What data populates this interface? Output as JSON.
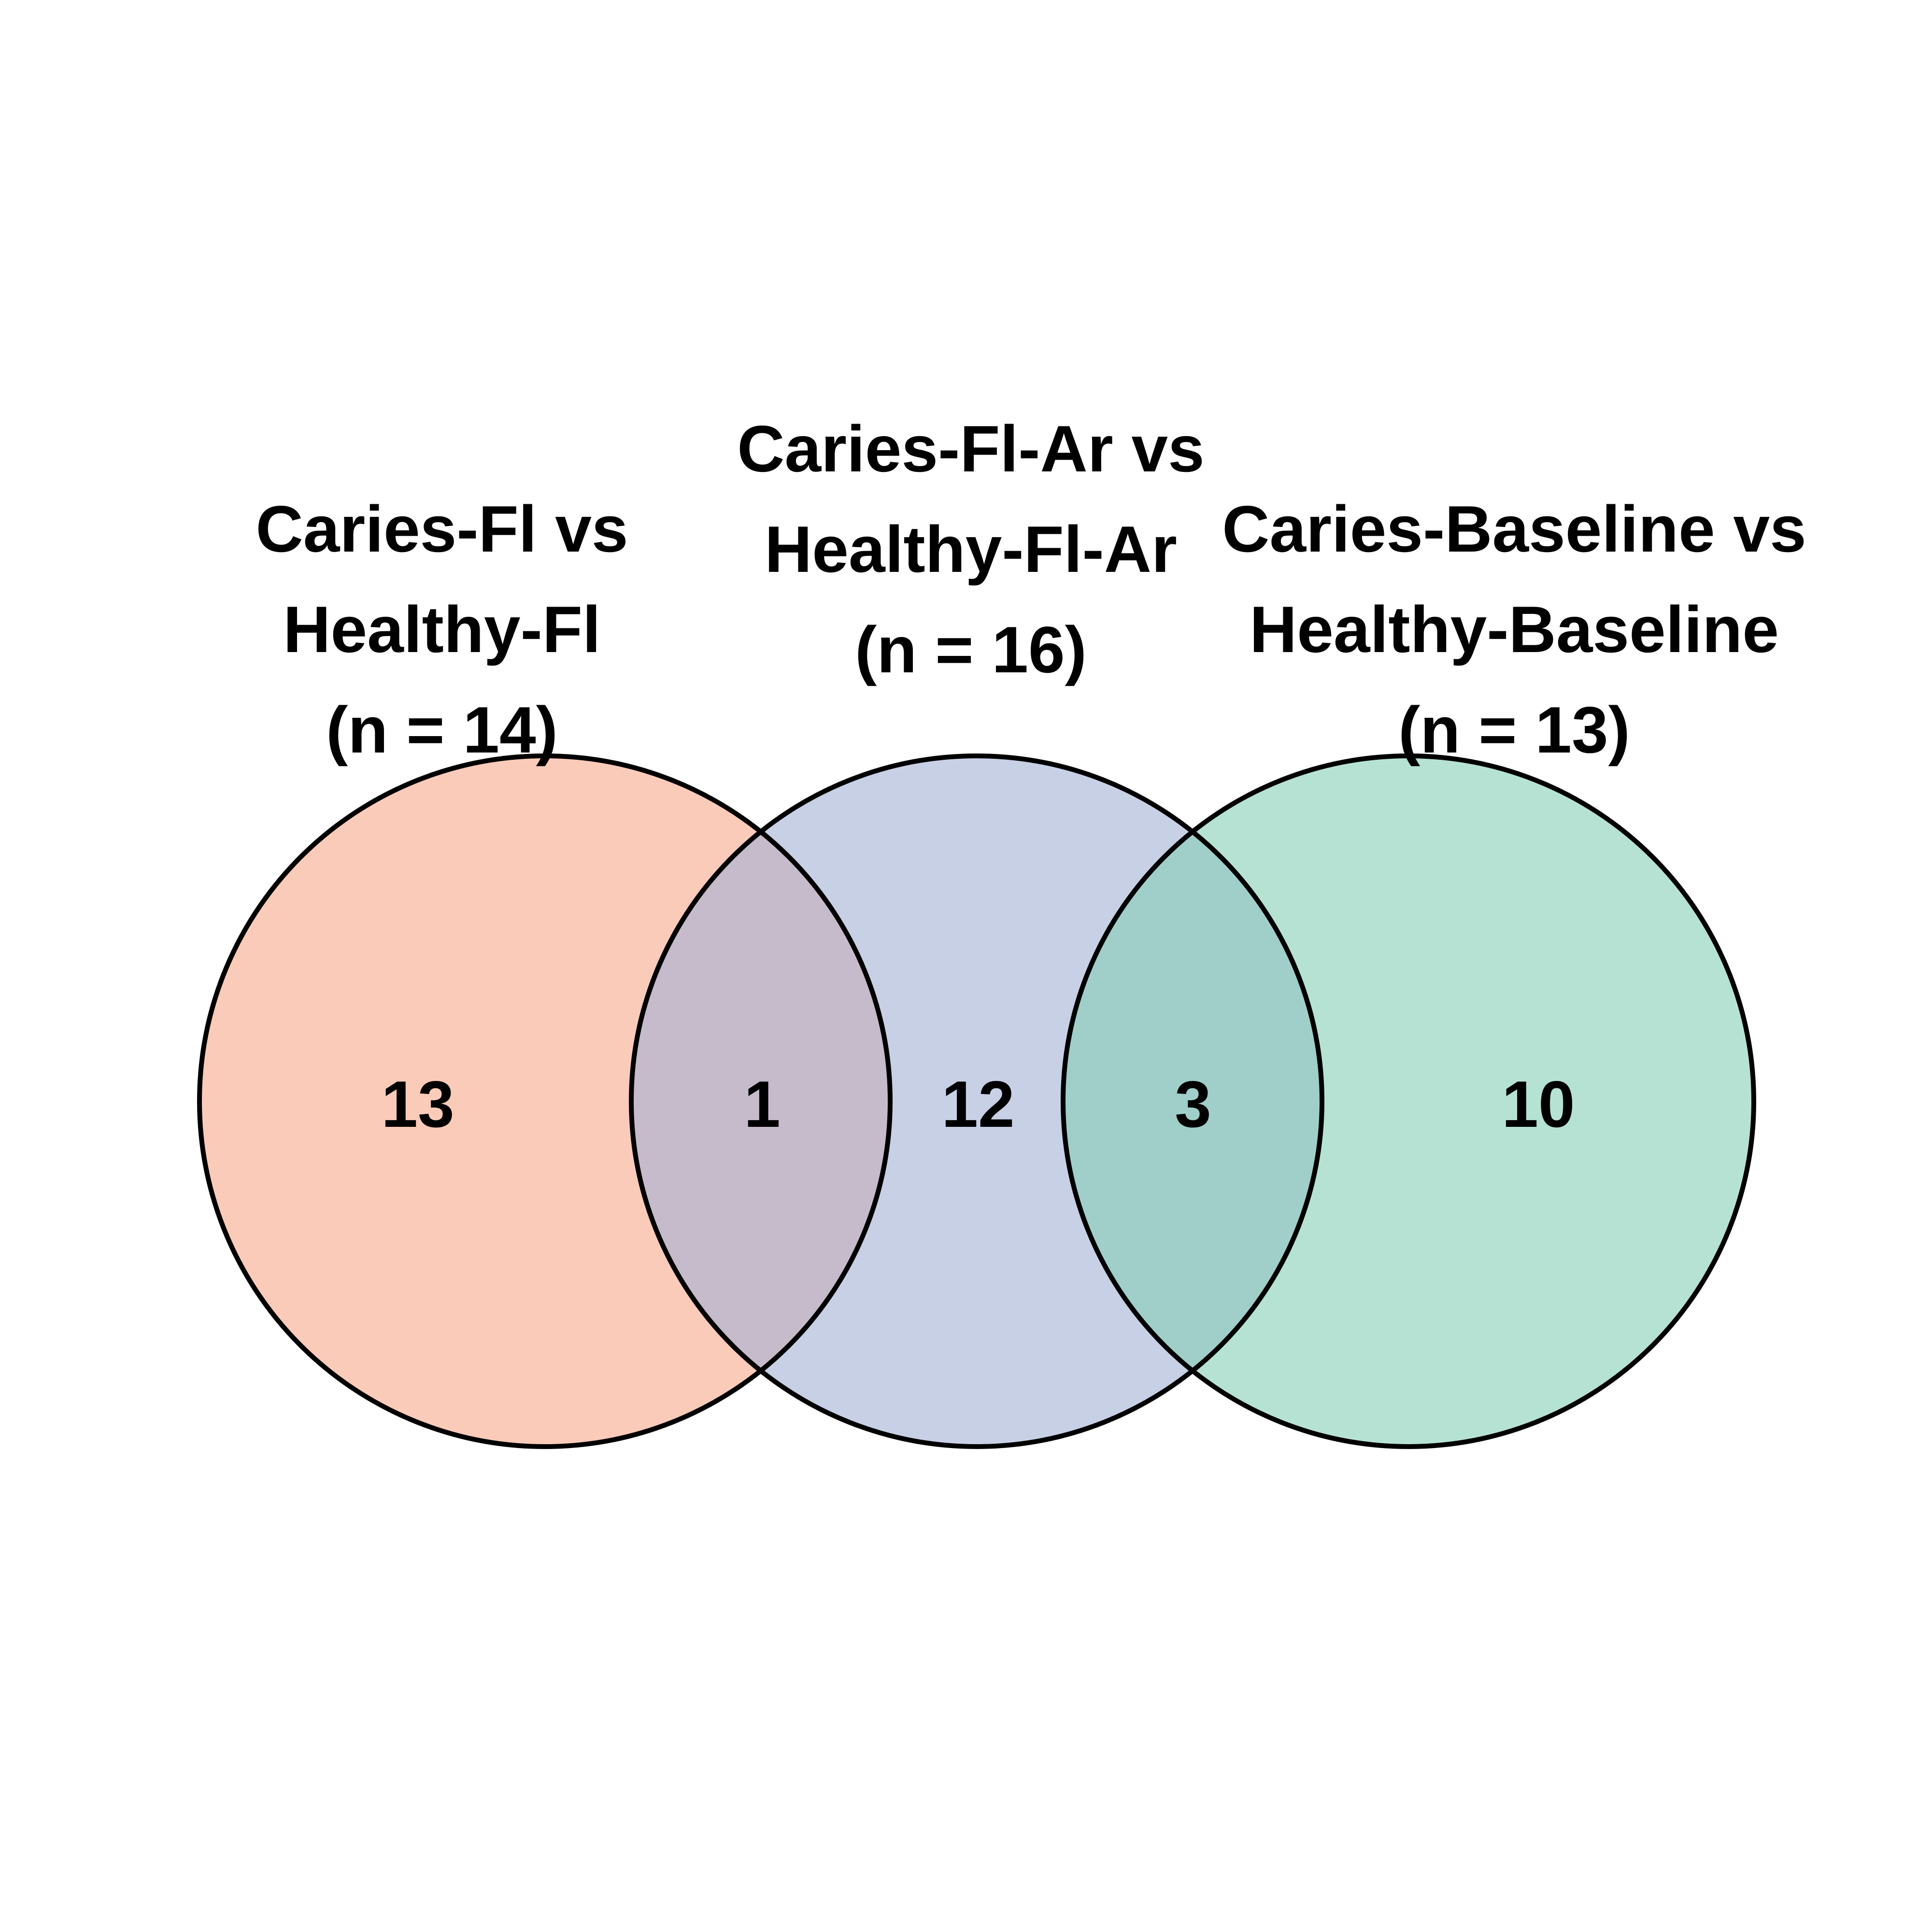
{
  "venn": {
    "sets": [
      {
        "id": "caries-fl",
        "label_lines": [
          "Caries-Fl vs",
          "Healthy-Fl",
          "(n = 14)"
        ],
        "size": 14,
        "color": "#f8a88a"
      },
      {
        "id": "caries-fl-ar",
        "label_lines": [
          "Caries-Fl-Ar vs",
          "Healthy-Fl-Ar",
          "(n = 16)"
        ],
        "size": 16,
        "color": "#a3b1d6"
      },
      {
        "id": "caries-baseline",
        "label_lines": [
          "Caries-Baseline vs",
          "Healthy-Baseline",
          "(n = 13)"
        ],
        "size": 13,
        "color": "#86cfb8"
      }
    ],
    "regions": [
      {
        "id": "only-caries-fl",
        "sets": [
          "caries-fl"
        ],
        "count": "13"
      },
      {
        "id": "caries-fl-and-caries-fl-ar",
        "sets": [
          "caries-fl",
          "caries-fl-ar"
        ],
        "count": "1"
      },
      {
        "id": "only-caries-fl-ar",
        "sets": [
          "caries-fl-ar"
        ],
        "count": "12"
      },
      {
        "id": "caries-fl-ar-and-caries-baseline",
        "sets": [
          "caries-fl-ar",
          "caries-baseline"
        ],
        "count": "3"
      },
      {
        "id": "only-caries-baseline",
        "sets": [
          "caries-baseline"
        ],
        "count": "10"
      }
    ],
    "fill_opacity": 0.6
  }
}
